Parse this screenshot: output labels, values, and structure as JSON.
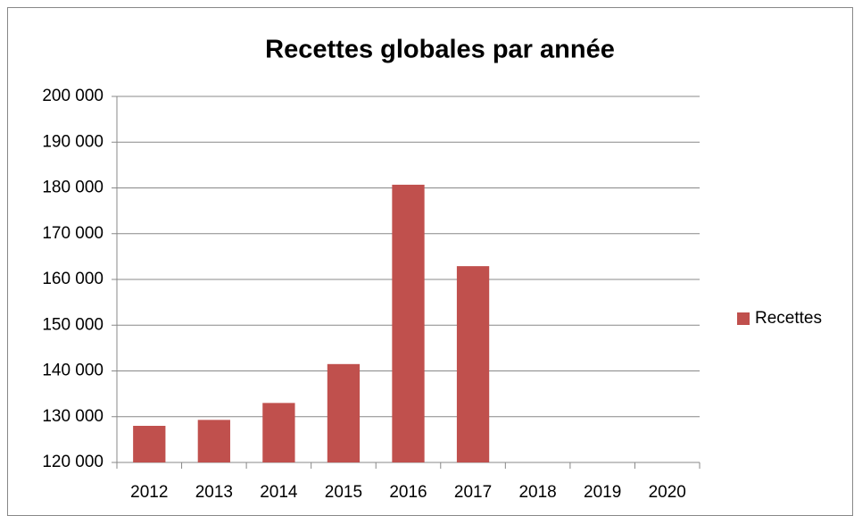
{
  "chart_data": {
    "type": "bar",
    "title": "Recettes globales par année",
    "categories": [
      "2012",
      "2013",
      "2014",
      "2015",
      "2016",
      "2017",
      "2018",
      "2019",
      "2020"
    ],
    "series": [
      {
        "name": "Recettes",
        "color": "#c0504d",
        "values": [
          128000,
          129300,
          133000,
          141500,
          180700,
          162900,
          null,
          null,
          null
        ]
      }
    ],
    "ylim": [
      120000,
      200000
    ],
    "yticks": [
      {
        "value": 120000,
        "label": "120 000"
      },
      {
        "value": 130000,
        "label": "130 000"
      },
      {
        "value": 140000,
        "label": "140 000"
      },
      {
        "value": 150000,
        "label": "150 000"
      },
      {
        "value": 160000,
        "label": "160 000"
      },
      {
        "value": 170000,
        "label": "170 000"
      },
      {
        "value": 180000,
        "label": "180 000"
      },
      {
        "value": 190000,
        "label": "190 000"
      },
      {
        "value": 200000,
        "label": "200 000"
      }
    ],
    "grid": true,
    "legend": "right"
  }
}
